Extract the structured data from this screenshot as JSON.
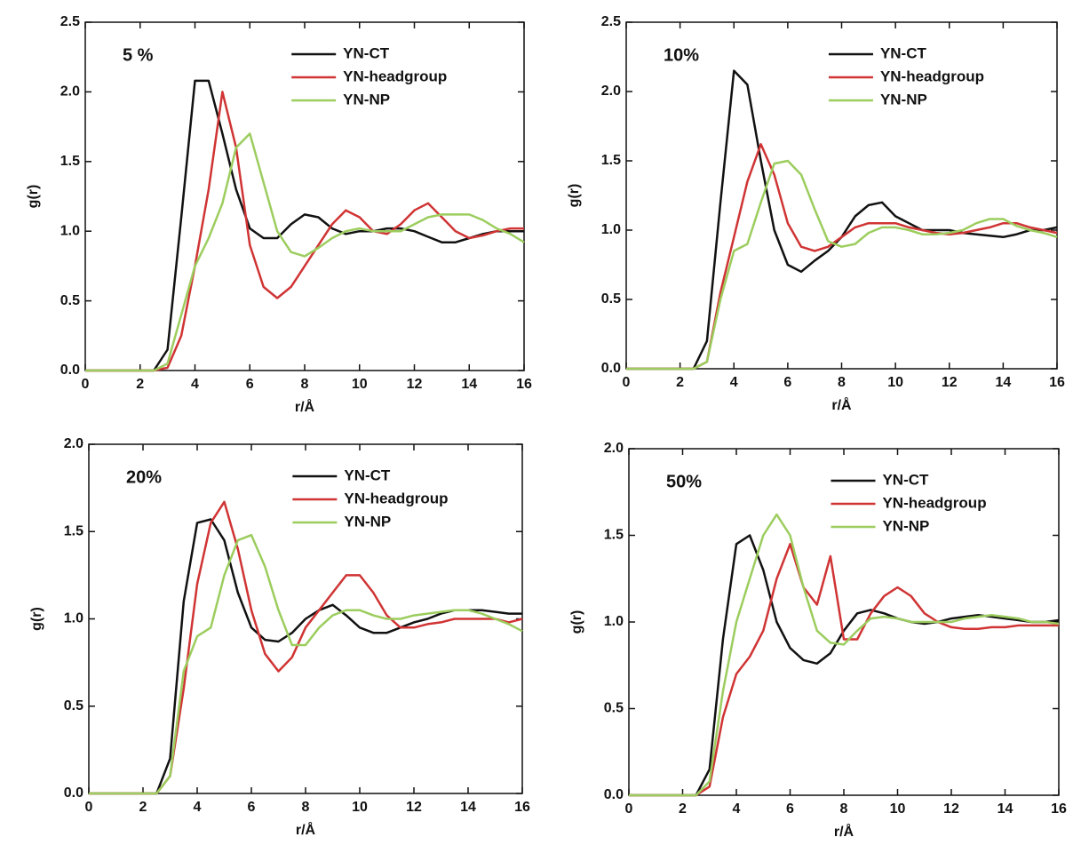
{
  "chart_data": [
    {
      "type": "line",
      "annotation": "5 %",
      "xlabel": "r/Å",
      "ylabel": "g(r)",
      "x": [
        0,
        1,
        2,
        2.5,
        3,
        3.5,
        4,
        4.5,
        5,
        5.5,
        6,
        6.5,
        7,
        7.5,
        8,
        8.5,
        9,
        9.5,
        10,
        10.5,
        11,
        11.5,
        12,
        12.5,
        13,
        13.5,
        14,
        14.5,
        15,
        15.5,
        16
      ],
      "series": [
        {
          "name": "YN-CT",
          "color": "#111111",
          "values": [
            0,
            0,
            0,
            0,
            0.15,
            1.1,
            2.08,
            2.08,
            1.7,
            1.3,
            1.02,
            0.95,
            0.95,
            1.05,
            1.12,
            1.1,
            1.02,
            0.98,
            1.0,
            1.0,
            1.02,
            1.02,
            1.0,
            0.96,
            0.92,
            0.92,
            0.95,
            0.98,
            1.0,
            1.0,
            1.0
          ]
        },
        {
          "name": "YN-headgroup",
          "color": "#d03434",
          "values": [
            0,
            0,
            0,
            0,
            0.02,
            0.25,
            0.75,
            1.3,
            2.0,
            1.6,
            0.9,
            0.6,
            0.52,
            0.6,
            0.75,
            0.9,
            1.05,
            1.15,
            1.1,
            1.0,
            0.98,
            1.05,
            1.15,
            1.2,
            1.1,
            1.0,
            0.95,
            0.97,
            1.0,
            1.02,
            1.02
          ]
        },
        {
          "name": "YN-NP",
          "color": "#9ccd5e",
          "values": [
            0,
            0,
            0,
            0,
            0.05,
            0.4,
            0.75,
            0.95,
            1.2,
            1.6,
            1.7,
            1.35,
            1.0,
            0.85,
            0.82,
            0.88,
            0.95,
            1.0,
            1.02,
            1.0,
            1.0,
            1.0,
            1.05,
            1.1,
            1.12,
            1.12,
            1.12,
            1.08,
            1.02,
            0.98,
            0.92
          ]
        }
      ],
      "xlim": [
        0,
        16
      ],
      "xticks": [
        0,
        2,
        4,
        6,
        8,
        10,
        12,
        14,
        16
      ],
      "ylim": [
        0,
        2.5
      ],
      "yticks": [
        {
          "value": 0,
          "label": "0.0"
        },
        0.5,
        {
          "value": 1,
          "label": "1.0"
        },
        1.5,
        {
          "value": 2,
          "label": "2.0"
        },
        2.5
      ]
    },
    {
      "type": "line",
      "annotation": "10%",
      "xlabel": "r/Å",
      "ylabel": "g(r)",
      "x": [
        0,
        1,
        2,
        2.5,
        3,
        3.5,
        4,
        4.5,
        5,
        5.5,
        6,
        6.5,
        7,
        7.5,
        8,
        8.5,
        9,
        9.5,
        10,
        10.5,
        11,
        11.5,
        12,
        12.5,
        13,
        13.5,
        14,
        14.5,
        15,
        15.5,
        16
      ],
      "series": [
        {
          "name": "YN-CT",
          "color": "#111111",
          "values": [
            0,
            0,
            0,
            0,
            0.2,
            1.2,
            2.15,
            2.05,
            1.5,
            1.0,
            0.75,
            0.7,
            0.78,
            0.85,
            0.95,
            1.1,
            1.18,
            1.2,
            1.1,
            1.05,
            1.0,
            1.0,
            1.0,
            0.98,
            0.97,
            0.96,
            0.95,
            0.97,
            1.0,
            1.0,
            1.02
          ]
        },
        {
          "name": "YN-headgroup",
          "color": "#d03434",
          "values": [
            0,
            0,
            0,
            0,
            0.05,
            0.55,
            0.95,
            1.35,
            1.62,
            1.4,
            1.05,
            0.88,
            0.85,
            0.88,
            0.95,
            1.02,
            1.05,
            1.05,
            1.05,
            1.02,
            1.0,
            0.98,
            0.97,
            0.98,
            1.0,
            1.02,
            1.05,
            1.05,
            1.02,
            1.0,
            0.98
          ]
        },
        {
          "name": "YN-NP",
          "color": "#9ccd5e",
          "values": [
            0,
            0,
            0,
            0,
            0.05,
            0.5,
            0.85,
            0.9,
            1.2,
            1.48,
            1.5,
            1.4,
            1.15,
            0.92,
            0.88,
            0.9,
            0.98,
            1.02,
            1.02,
            1.0,
            0.97,
            0.97,
            0.98,
            1.0,
            1.05,
            1.08,
            1.08,
            1.03,
            1.0,
            0.98,
            0.95
          ]
        }
      ],
      "xlim": [
        0,
        16
      ],
      "xticks": [
        0,
        2,
        4,
        6,
        8,
        10,
        12,
        14,
        16
      ],
      "ylim": [
        0,
        2.5
      ],
      "yticks": [
        {
          "value": 0,
          "label": "0.0"
        },
        0.5,
        {
          "value": 1,
          "label": "1.0"
        },
        1.5,
        {
          "value": 2,
          "label": "2.0"
        },
        2.5
      ]
    },
    {
      "type": "line",
      "annotation": "20%",
      "xlabel": "r/Å",
      "ylabel": "g(r)",
      "x": [
        0,
        1,
        2,
        2.5,
        3,
        3.5,
        4,
        4.5,
        5,
        5.5,
        6,
        6.5,
        7,
        7.5,
        8,
        8.5,
        9,
        9.5,
        10,
        10.5,
        11,
        11.5,
        12,
        12.5,
        13,
        13.5,
        14,
        14.5,
        15,
        15.5,
        16
      ],
      "series": [
        {
          "name": "YN-CT",
          "color": "#111111",
          "values": [
            0,
            0,
            0,
            0,
            0.2,
            1.1,
            1.55,
            1.57,
            1.45,
            1.15,
            0.95,
            0.88,
            0.87,
            0.92,
            1.0,
            1.05,
            1.08,
            1.02,
            0.95,
            0.92,
            0.92,
            0.95,
            0.98,
            1.0,
            1.03,
            1.05,
            1.05,
            1.05,
            1.04,
            1.03,
            1.03
          ]
        },
        {
          "name": "YN-headgroup",
          "color": "#d03434",
          "values": [
            0,
            0,
            0,
            0,
            0.1,
            0.6,
            1.2,
            1.55,
            1.67,
            1.4,
            1.05,
            0.8,
            0.7,
            0.78,
            0.95,
            1.05,
            1.15,
            1.25,
            1.25,
            1.15,
            1.02,
            0.95,
            0.95,
            0.97,
            0.98,
            1.0,
            1.0,
            1.0,
            1.0,
            0.98,
            1.0
          ]
        },
        {
          "name": "YN-NP",
          "color": "#9ccd5e",
          "values": [
            0,
            0,
            0,
            0,
            0.1,
            0.7,
            0.9,
            0.95,
            1.25,
            1.45,
            1.48,
            1.3,
            1.05,
            0.85,
            0.85,
            0.95,
            1.02,
            1.05,
            1.05,
            1.02,
            1.0,
            1.0,
            1.02,
            1.03,
            1.04,
            1.05,
            1.05,
            1.03,
            1.0,
            0.97,
            0.93
          ]
        }
      ],
      "xlim": [
        0,
        16
      ],
      "xticks": [
        0,
        2,
        4,
        6,
        8,
        10,
        12,
        14,
        16
      ],
      "ylim": [
        0,
        2
      ],
      "yticks": [
        {
          "value": 0,
          "label": "0.0"
        },
        0.5,
        {
          "value": 1,
          "label": "1.0"
        },
        1.5,
        {
          "value": 2,
          "label": "2.0"
        }
      ]
    },
    {
      "type": "line",
      "annotation": "50%",
      "xlabel": "r/Å",
      "ylabel": "g(r)",
      "x": [
        0,
        1,
        2,
        2.5,
        3,
        3.5,
        4,
        4.5,
        5,
        5.5,
        6,
        6.5,
        7,
        7.5,
        8,
        8.5,
        9,
        9.5,
        10,
        10.5,
        11,
        11.5,
        12,
        12.5,
        13,
        13.5,
        14,
        14.5,
        15,
        15.5,
        16
      ],
      "series": [
        {
          "name": "YN-CT",
          "color": "#111111",
          "values": [
            0,
            0,
            0,
            0,
            0.15,
            0.9,
            1.45,
            1.5,
            1.3,
            1.0,
            0.85,
            0.78,
            0.76,
            0.82,
            0.95,
            1.05,
            1.07,
            1.05,
            1.02,
            1.0,
            0.99,
            1.0,
            1.02,
            1.03,
            1.04,
            1.03,
            1.02,
            1.01,
            1.0,
            1.0,
            1.01
          ]
        },
        {
          "name": "YN-headgroup",
          "color": "#d03434",
          "values": [
            0,
            0,
            0,
            0,
            0.05,
            0.45,
            0.7,
            0.8,
            0.95,
            1.25,
            1.45,
            1.2,
            1.1,
            1.38,
            0.9,
            0.9,
            1.05,
            1.15,
            1.2,
            1.15,
            1.05,
            1.0,
            0.97,
            0.96,
            0.96,
            0.97,
            0.97,
            0.98,
            0.98,
            0.98,
            0.98
          ]
        },
        {
          "name": "YN-NP",
          "color": "#9ccd5e",
          "values": [
            0,
            0,
            0,
            0,
            0.08,
            0.6,
            1.0,
            1.25,
            1.5,
            1.62,
            1.5,
            1.2,
            0.95,
            0.88,
            0.87,
            0.95,
            1.02,
            1.03,
            1.02,
            1.0,
            1.0,
            1.0,
            1.0,
            1.02,
            1.03,
            1.04,
            1.03,
            1.02,
            1.0,
            1.0,
            0.99
          ]
        }
      ],
      "xlim": [
        0,
        16
      ],
      "xticks": [
        0,
        2,
        4,
        6,
        8,
        10,
        12,
        14,
        16
      ],
      "ylim": [
        0,
        2
      ],
      "yticks": [
        {
          "value": 0,
          "label": "0.0"
        },
        0.5,
        {
          "value": 1,
          "label": "1.0"
        },
        1.5,
        {
          "value": 2,
          "label": "2.0"
        }
      ]
    }
  ]
}
